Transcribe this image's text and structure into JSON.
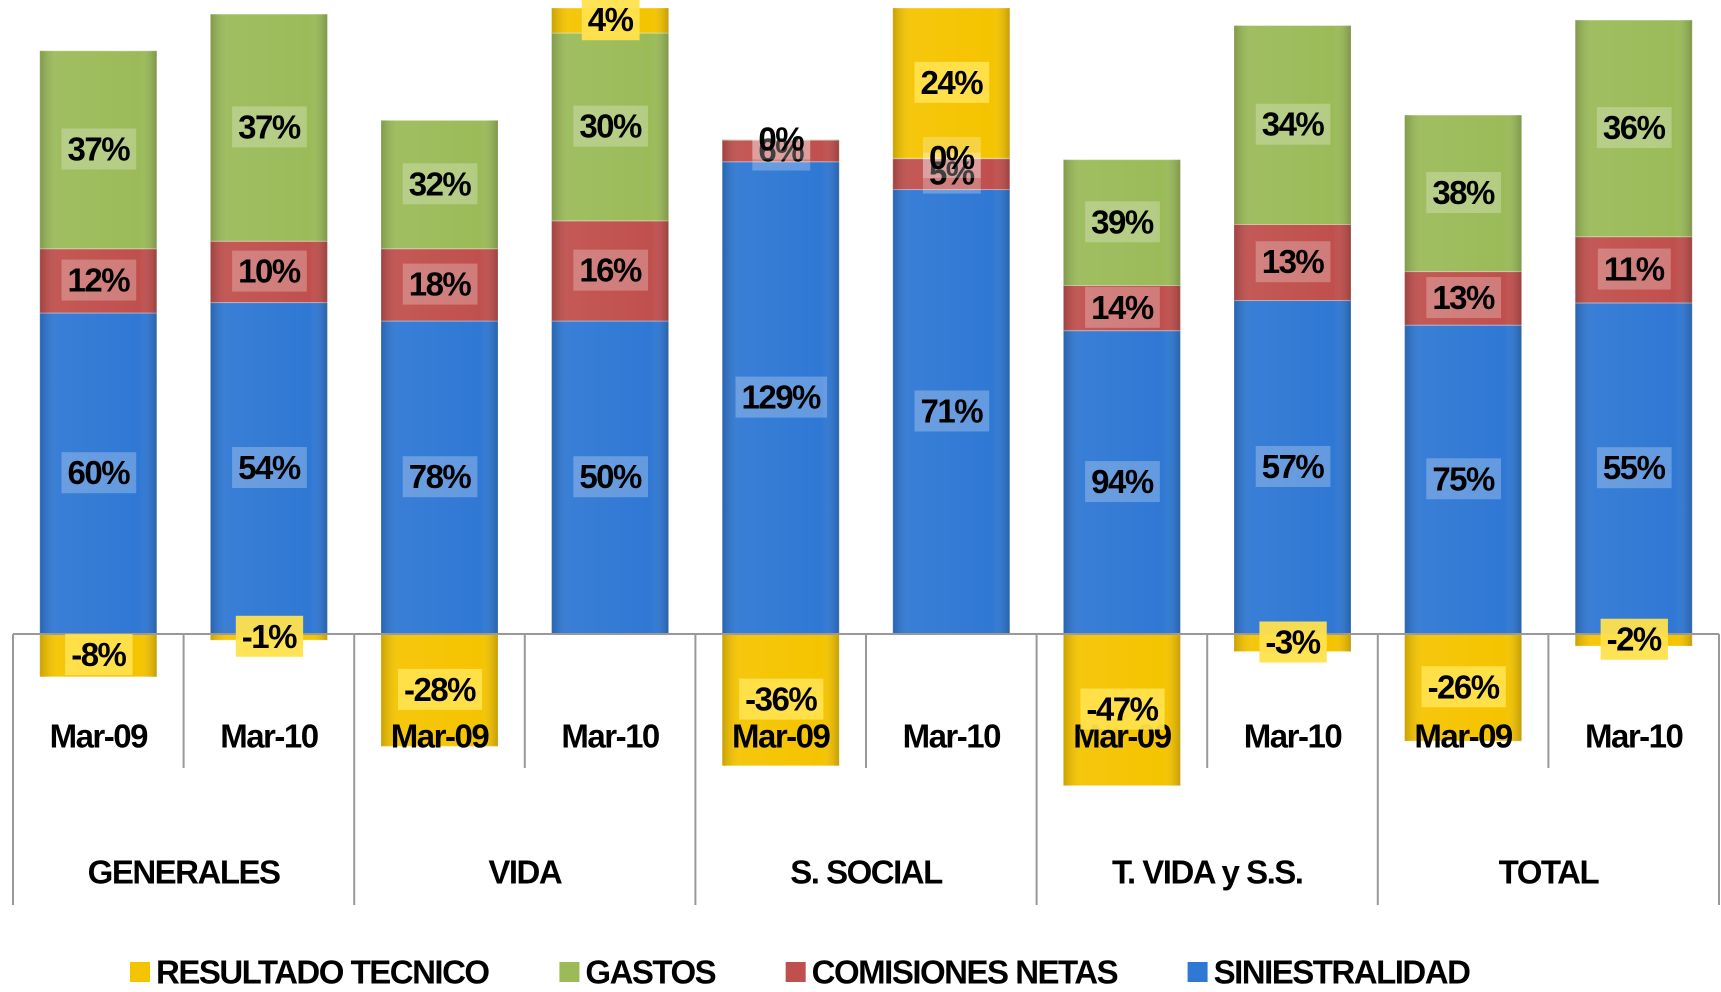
{
  "chart_data": {
    "type": "bar",
    "stacking": "percent",
    "categories": [
      "Mar-09",
      "Mar-10",
      "Mar-09",
      "Mar-10",
      "Mar-09",
      "Mar-10",
      "Mar-09",
      "Mar-10",
      "Mar-09",
      "Mar-10"
    ],
    "groups": [
      "GENERALES",
      "VIDA",
      "S. SOCIAL",
      "T. VIDA y S.S.",
      "TOTAL"
    ],
    "series": [
      {
        "name": "RESULTADO TECNICO",
        "color": "#f5c400",
        "values": [
          -8,
          -1,
          -28,
          4,
          -36,
          24,
          -47,
          -3,
          -26,
          -2
        ],
        "value_labels": [
          "-8%",
          "-1%",
          "-28%",
          "4%",
          "-36%",
          "24%",
          "-47%",
          "-3%",
          "-26%",
          "-2%"
        ]
      },
      {
        "name": "GASTOS",
        "color": "#9bbb59",
        "values": [
          37,
          37,
          32,
          30,
          0,
          0,
          39,
          34,
          38,
          36
        ],
        "value_labels": [
          "37%",
          "37%",
          "32%",
          "30%",
          "0%",
          "0%",
          "39%",
          "34%",
          "38%",
          "36%"
        ]
      },
      {
        "name": "COMISIONES NETAS",
        "color": "#c0504d",
        "values": [
          12,
          10,
          18,
          16,
          6,
          5,
          14,
          13,
          13,
          11
        ],
        "value_labels": [
          "12%",
          "10%",
          "18%",
          "16%",
          "6%",
          "5%",
          "14%",
          "13%",
          "13%",
          "11%"
        ]
      },
      {
        "name": "SINIESTRALIDAD",
        "color": "#2f78d4",
        "values": [
          60,
          54,
          78,
          50,
          129,
          71,
          94,
          57,
          75,
          55
        ],
        "value_labels": [
          "60%",
          "54%",
          "78%",
          "50%",
          "129%",
          "71%",
          "94%",
          "57%",
          "75%",
          "55%"
        ]
      }
    ],
    "legend": "bottom"
  }
}
